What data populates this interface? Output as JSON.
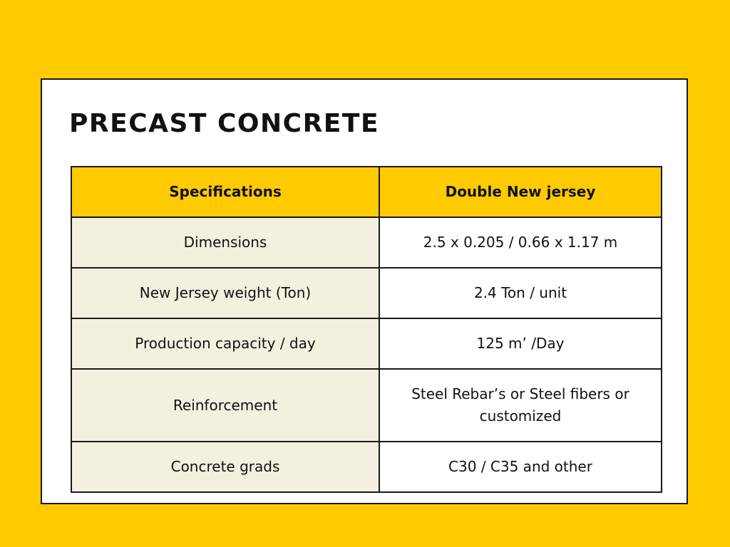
{
  "title": "PRECAST CONCRETE",
  "colors": {
    "background": "#FFCA00",
    "header_fill": "#FFCA00",
    "label_fill": "#F3F0E0",
    "value_fill": "#FFFFFF",
    "border": "#1a1a1a"
  },
  "table": {
    "headers": [
      "Specifications",
      "Double New jersey"
    ],
    "rows": [
      {
        "label": "Dimensions",
        "value": "2.5 x 0.205 / 0.66 x 1.17 m"
      },
      {
        "label": "New Jersey weight (Ton)",
        "value": "2.4 Ton / unit"
      },
      {
        "label": "Production capacity / day",
        "value": "125 m’ /Day"
      },
      {
        "label": "Reinforcement",
        "value": "Steel Rebar’s or Steel fibers or customized"
      },
      {
        "label": "Concrete grads",
        "value": "C30 / C35 and other"
      }
    ]
  }
}
